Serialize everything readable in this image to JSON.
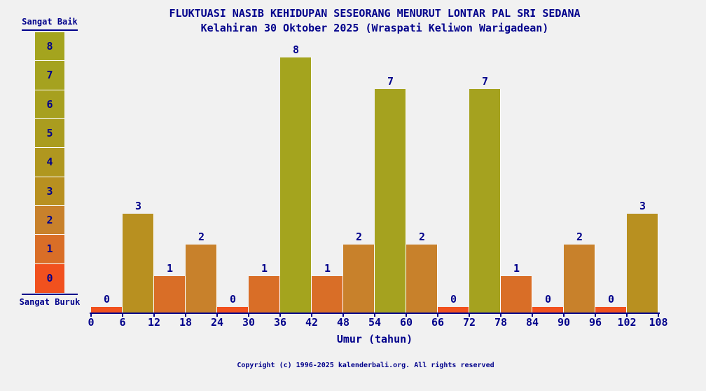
{
  "title": "FLUKTUASI NASIB KEHIDUPAN SESEORANG MENURUT LONTAR PAL SRI SEDANA",
  "subtitle": "Kelahiran 30 Oktober 2025 (Wraspati Keliwon Warigadean)",
  "footer": "Copyright (c) 1996-2025 kalenderbali.org. All rights reserved",
  "legend": {
    "top_label": "Sangat Baik",
    "bottom_label": "Sangat Buruk",
    "levels_top_to_bottom": [
      8,
      7,
      6,
      5,
      4,
      3,
      2,
      1,
      0
    ]
  },
  "colors": {
    "background": "#F1F1F1",
    "text": "#00008B",
    "bar_separator": "#FFFFFF",
    "palette_by_value": [
      "#F1511E",
      "#D96E27",
      "#C8812B",
      "#B89020",
      "#B0971F",
      "#AA9C1F",
      "#A7A01F",
      "#A5A21F",
      "#A4A41E"
    ]
  },
  "chart_data": {
    "type": "bar",
    "title": "FLUKTUASI NASIB KEHIDUPAN SESEORANG MENURUT LONTAR PAL SRI SEDANA",
    "subtitle": "Kelahiran 30 Oktober 2025 (Wraspati Keliwon Warigadean)",
    "xlabel": "Umur (tahun)",
    "ylabel": "",
    "x_ticks": [
      0,
      6,
      12,
      18,
      24,
      30,
      36,
      42,
      48,
      54,
      60,
      66,
      72,
      78,
      84,
      90,
      96,
      102,
      108
    ],
    "age_intervals": [
      [
        0,
        6
      ],
      [
        6,
        12
      ],
      [
        12,
        18
      ],
      [
        18,
        24
      ],
      [
        24,
        30
      ],
      [
        30,
        36
      ],
      [
        36,
        42
      ],
      [
        42,
        48
      ],
      [
        48,
        54
      ],
      [
        54,
        60
      ],
      [
        60,
        66
      ],
      [
        66,
        72
      ],
      [
        72,
        78
      ],
      [
        78,
        84
      ],
      [
        84,
        90
      ],
      [
        90,
        96
      ],
      [
        96,
        102
      ],
      [
        102,
        108
      ]
    ],
    "values": [
      0,
      3,
      1,
      2,
      0,
      1,
      8,
      1,
      2,
      7,
      2,
      0,
      7,
      1,
      0,
      2,
      0,
      3
    ],
    "ylim": [
      0,
      8
    ],
    "grid": false,
    "legend_position": "left",
    "value_scale": {
      "max_label": "Sangat Baik",
      "min_label": "Sangat Buruk"
    }
  }
}
